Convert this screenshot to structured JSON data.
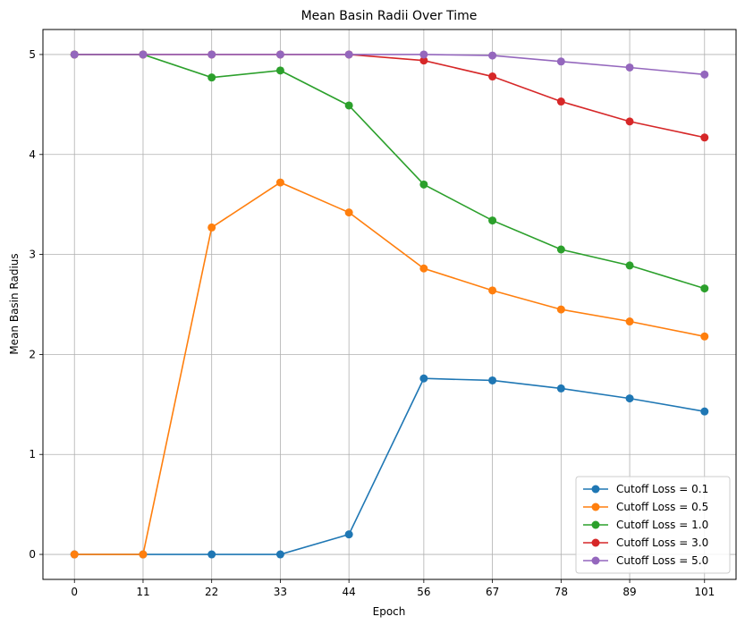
{
  "chart_data": {
    "type": "line",
    "title": "Mean Basin Radii Over Time",
    "xlabel": "Epoch",
    "ylabel": "Mean Basin Radius",
    "x": [
      0,
      11,
      22,
      33,
      44,
      56,
      67,
      78,
      89,
      101
    ],
    "x_tick_labels": [
      "0",
      "11",
      "22",
      "33",
      "44",
      "56",
      "67",
      "78",
      "89",
      "101"
    ],
    "y_ticks": [
      0,
      1,
      2,
      3,
      4,
      5
    ],
    "y_tick_labels": [
      "0",
      "1",
      "2",
      "3",
      "4",
      "5"
    ],
    "xlim": [
      -5.05,
      106.05
    ],
    "ylim": [
      -0.25,
      5.25
    ],
    "grid": true,
    "legend_position": "bottom-right",
    "series": [
      {
        "name": "Cutoff Loss = 0.1",
        "color": "#1f77b4",
        "values": [
          0.0,
          0.0,
          0.0,
          0.0,
          0.2,
          1.76,
          1.74,
          1.66,
          1.56,
          1.43
        ]
      },
      {
        "name": "Cutoff Loss = 0.5",
        "color": "#ff7f0e",
        "values": [
          0.0,
          0.0,
          3.27,
          3.72,
          3.42,
          2.86,
          2.64,
          2.45,
          2.33,
          2.18
        ]
      },
      {
        "name": "Cutoff Loss = 1.0",
        "color": "#2ca02c",
        "values": [
          5.0,
          5.0,
          4.77,
          4.84,
          4.49,
          3.7,
          3.34,
          3.05,
          2.89,
          2.66
        ]
      },
      {
        "name": "Cutoff Loss = 3.0",
        "color": "#d62728",
        "values": [
          5.0,
          5.0,
          5.0,
          5.0,
          5.0,
          4.94,
          4.78,
          4.53,
          4.33,
          4.17
        ]
      },
      {
        "name": "Cutoff Loss = 5.0",
        "color": "#9467bd",
        "values": [
          5.0,
          5.0,
          5.0,
          5.0,
          5.0,
          5.0,
          4.99,
          4.93,
          4.87,
          4.8
        ]
      }
    ]
  }
}
